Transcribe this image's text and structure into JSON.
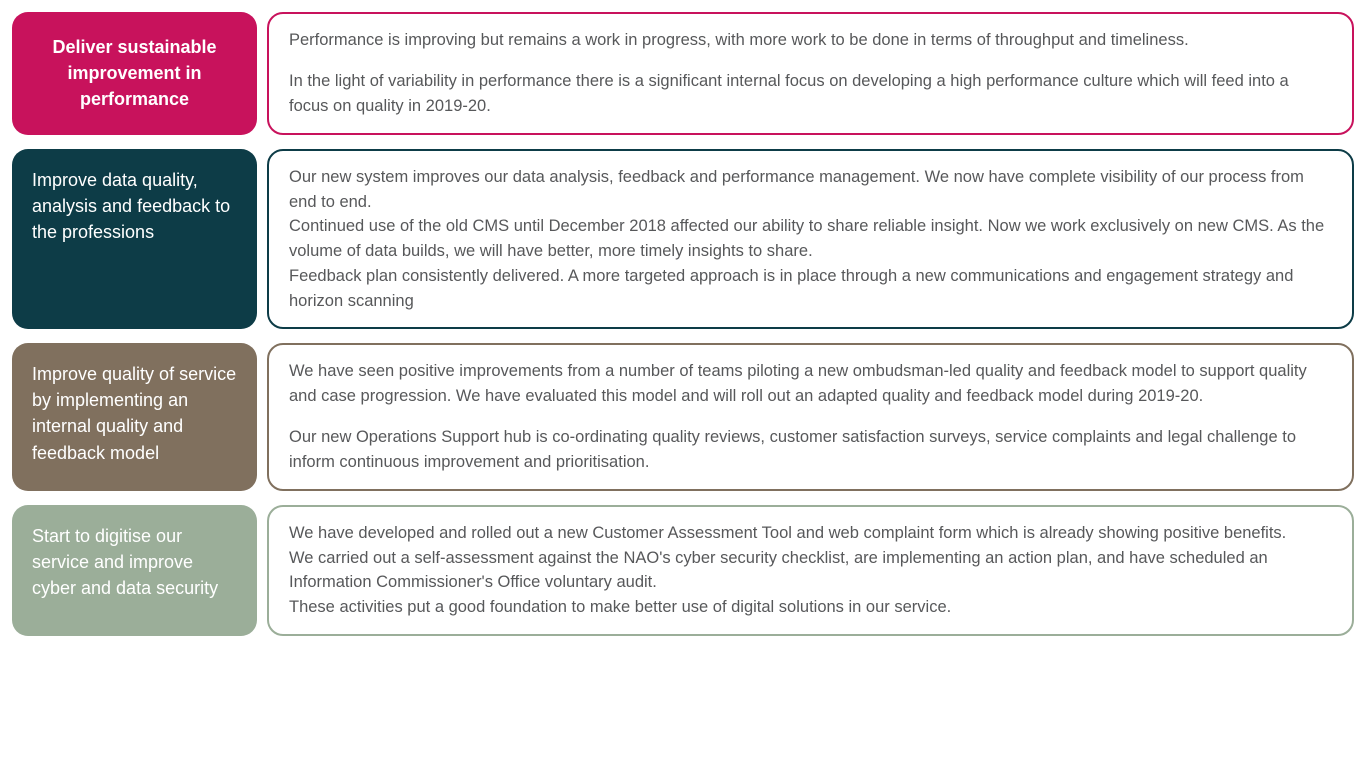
{
  "rows": [
    {
      "label_bg": "#c8125c",
      "border_color": "#c8125c",
      "label_centered": true,
      "label": "Deliver sustainable improvement in performance",
      "paragraphs": [
        "Performance is improving but remains a work in progress, with more work to be done in terms of throughput and timeliness.",
        "In the light of variability in performance there is a significant internal focus on developing a high performance culture which will feed into a focus on quality in 2019-20."
      ],
      "tight": false
    },
    {
      "label_bg": "#0d3c47",
      "border_color": "#0d3c47",
      "label_centered": false,
      "label": "Improve data quality, analysis and feedback to the professions",
      "paragraphs": [
        "Our new system improves our data analysis, feedback and performance management. We now have complete visibility of our process from end to end.",
        "Continued use of the old CMS until December 2018 affected our ability to share reliable insight. Now we work exclusively on new CMS. As the volume of data builds, we will have better, more timely insights to share.",
        "Feedback plan consistently delivered. A more targeted approach is in place through a new communications and engagement strategy and horizon scanning"
      ],
      "tight": true
    },
    {
      "label_bg": "#80705e",
      "border_color": "#80705e",
      "label_centered": false,
      "label": "Improve quality of service by implementing an internal quality and feedback model",
      "paragraphs": [
        "We have seen positive improvements from a number of teams piloting a new ombudsman-led quality and feedback model to support quality and case progression. We have evaluated this model and will roll out an adapted quality and feedback model during 2019-20.",
        "Our new Operations Support hub is co-ordinating quality reviews, customer satisfaction surveys, service complaints and legal challenge to inform continuous improvement and prioritisation."
      ],
      "tight": false
    },
    {
      "label_bg": "#9bae99",
      "border_color": "#9bae99",
      "label_centered": false,
      "label": "Start to digitise our service and improve cyber and data security",
      "paragraphs": [
        "We have developed and rolled out a new Customer Assessment Tool and web complaint form which is already showing positive benefits.",
        "We carried out a self-assessment against the NAO's cyber security checklist, are implementing an action plan, and have scheduled an Information Commissioner's Office voluntary audit.",
        "These activities put a good foundation to make better use of digital solutions in our service."
      ],
      "tight": true
    }
  ]
}
